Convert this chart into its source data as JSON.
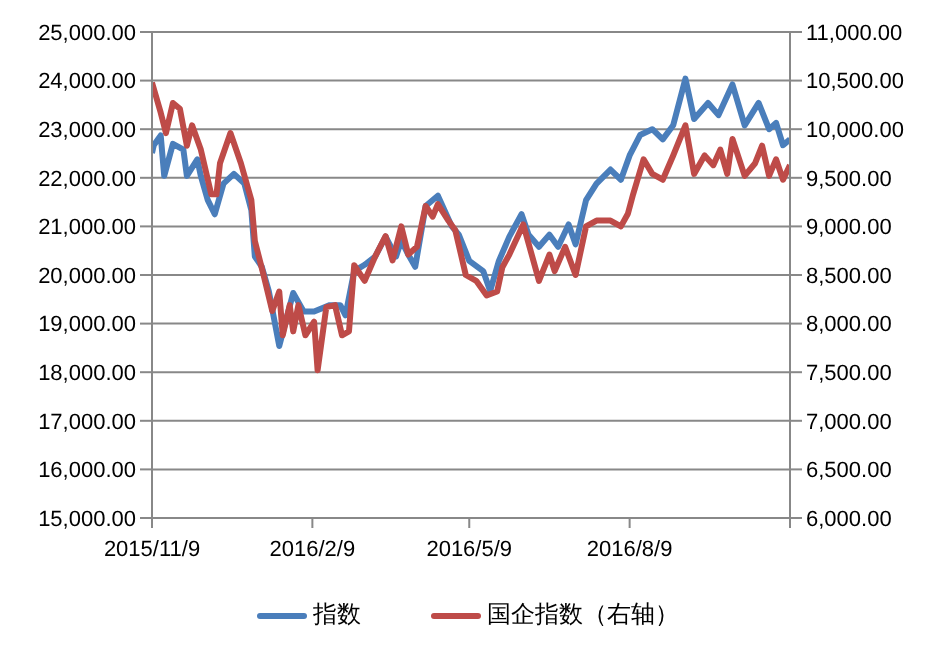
{
  "chart_data": {
    "type": "line",
    "grid": "y",
    "legend": "bottom",
    "marker": "none",
    "line_style": "solid",
    "xlim": [
      "2015-11-09",
      "2016-11-09"
    ],
    "xticks": [
      {
        "value": "2015-11-09",
        "label": "2015/11/9"
      },
      {
        "value": "2016-02-09",
        "label": "2016/2/9"
      },
      {
        "value": "2016-05-09",
        "label": "2016/5/9"
      },
      {
        "value": "2016-08-09",
        "label": "2016/8/9"
      },
      {
        "value": "2016-11-09",
        "label": null
      }
    ],
    "ylim": [
      15000,
      25000
    ],
    "yticks": [
      {
        "value": 15000,
        "label": "15,000.00"
      },
      {
        "value": 16000,
        "label": "16,000.00"
      },
      {
        "value": 17000,
        "label": "17,000.00"
      },
      {
        "value": 18000,
        "label": "18,000.00"
      },
      {
        "value": 19000,
        "label": "19,000.00"
      },
      {
        "value": 20000,
        "label": "20,000.00"
      },
      {
        "value": 21000,
        "label": "21,000.00"
      },
      {
        "value": 22000,
        "label": "22,000.00"
      },
      {
        "value": 23000,
        "label": "23,000.00"
      },
      {
        "value": 24000,
        "label": "24,000.00"
      },
      {
        "value": 25000,
        "label": "25,000.00"
      }
    ],
    "y2lim": [
      6000,
      11000
    ],
    "y2ticks": [
      {
        "value": 6000,
        "label": "6,000.00"
      },
      {
        "value": 6500,
        "label": "6,500.00"
      },
      {
        "value": 7000,
        "label": "7,000.00"
      },
      {
        "value": 7500,
        "label": "7,500.00"
      },
      {
        "value": 8000,
        "label": "8,000.00"
      },
      {
        "value": 8500,
        "label": "8,500.00"
      },
      {
        "value": 9000,
        "label": "9,000.00"
      },
      {
        "value": 9500,
        "label": "9,500.00"
      },
      {
        "value": 10000,
        "label": "10,000.00"
      },
      {
        "value": 10500,
        "label": "10,500.00"
      },
      {
        "value": 11000,
        "label": "11,000.00"
      }
    ],
    "series": [
      {
        "name": "指数",
        "color": "#4a7ebb",
        "x": [
          "2015-11-09",
          "2015-11-10",
          "2015-11-14",
          "2015-11-16",
          "2015-11-21",
          "2015-11-27",
          "2015-11-29",
          "2015-12-05",
          "2015-12-07",
          "2015-12-11",
          "2015-12-15",
          "2015-12-20",
          "2015-12-26",
          "2016-01-01",
          "2016-01-05",
          "2016-01-07",
          "2016-01-11",
          "2016-01-15",
          "2016-01-21",
          "2016-01-29",
          "2016-02-04",
          "2016-02-10",
          "2016-02-19",
          "2016-02-25",
          "2016-02-28",
          "2016-03-04",
          "2016-03-10",
          "2016-03-16",
          "2016-03-22",
          "2016-03-28",
          "2016-03-31",
          "2016-04-04",
          "2016-04-08",
          "2016-04-14",
          "2016-04-21",
          "2016-04-29",
          "2016-05-03",
          "2016-05-09",
          "2016-05-17",
          "2016-05-21",
          "2016-05-26",
          "2016-06-01",
          "2016-06-08",
          "2016-06-12",
          "2016-06-18",
          "2016-06-24",
          "2016-06-29",
          "2016-07-05",
          "2016-07-09",
          "2016-07-15",
          "2016-07-21",
          "2016-07-29",
          "2016-08-04",
          "2016-08-09",
          "2016-08-15",
          "2016-08-22",
          "2016-08-28",
          "2016-09-03",
          "2016-09-10",
          "2016-09-15",
          "2016-09-23",
          "2016-09-29",
          "2016-10-07",
          "2016-10-14",
          "2016-10-22",
          "2016-10-28",
          "2016-11-01",
          "2016-11-05",
          "2016-11-09"
        ],
        "values": [
          22510,
          22670,
          22870,
          22040,
          22700,
          22580,
          22040,
          22380,
          22040,
          21540,
          21250,
          21880,
          22080,
          21880,
          21330,
          20380,
          20170,
          19670,
          18540,
          19630,
          19250,
          19250,
          19380,
          19380,
          19170,
          20080,
          20210,
          20380,
          20790,
          20380,
          20710,
          20420,
          20170,
          21420,
          21630,
          21000,
          20830,
          20290,
          20080,
          19670,
          20290,
          20790,
          21250,
          20830,
          20580,
          20830,
          20580,
          21040,
          20630,
          21540,
          21880,
          22170,
          21960,
          22460,
          22880,
          23000,
          22790,
          23080,
          24040,
          23210,
          23540,
          23290,
          23920,
          23080,
          23540,
          23000,
          23130,
          22670,
          22790
        ]
      },
      {
        "name": "国企指数（右轴）",
        "color": "#be4b48",
        "axis": "y2",
        "x": [
          "2015-11-09",
          "2015-11-14",
          "2015-11-17",
          "2015-11-21",
          "2015-11-25",
          "2015-11-29",
          "2015-12-02",
          "2015-12-07",
          "2015-12-13",
          "2015-12-16",
          "2015-12-18",
          "2015-12-24",
          "2015-12-30",
          "2016-01-05",
          "2016-01-07",
          "2016-01-12",
          "2016-01-17",
          "2016-01-21",
          "2016-01-23",
          "2016-01-27",
          "2016-01-29",
          "2016-02-01",
          "2016-02-05",
          "2016-02-10",
          "2016-02-12",
          "2016-02-17",
          "2016-02-22",
          "2016-02-26",
          "2016-03-01",
          "2016-03-04",
          "2016-03-10",
          "2016-03-16",
          "2016-03-22",
          "2016-03-26",
          "2016-03-31",
          "2016-04-04",
          "2016-04-09",
          "2016-04-14",
          "2016-04-18",
          "2016-04-21",
          "2016-04-27",
          "2016-05-01",
          "2016-05-07",
          "2016-05-13",
          "2016-05-19",
          "2016-05-25",
          "2016-05-28",
          "2016-06-01",
          "2016-06-09",
          "2016-06-18",
          "2016-06-24",
          "2016-06-27",
          "2016-07-03",
          "2016-07-09",
          "2016-07-15",
          "2016-07-21",
          "2016-07-29",
          "2016-08-04",
          "2016-08-08",
          "2016-08-11",
          "2016-08-17",
          "2016-08-22",
          "2016-08-28",
          "2016-09-03",
          "2016-09-10",
          "2016-09-15",
          "2016-09-21",
          "2016-09-26",
          "2016-09-30",
          "2016-10-04",
          "2016-10-07",
          "2016-10-14",
          "2016-10-20",
          "2016-10-24",
          "2016-10-28",
          "2016-11-01",
          "2016-11-05",
          "2016-11-09"
        ],
        "values": [
          10480,
          10170,
          9960,
          10270,
          10210,
          9830,
          10040,
          9790,
          9330,
          9330,
          9650,
          9960,
          9650,
          9270,
          8850,
          8500,
          8130,
          8330,
          7880,
          8190,
          7920,
          8190,
          7880,
          8020,
          7520,
          8170,
          8190,
          7880,
          7920,
          8600,
          8440,
          8690,
          8900,
          8650,
          9000,
          8710,
          8790,
          9210,
          9100,
          9230,
          9060,
          8960,
          8500,
          8440,
          8290,
          8330,
          8580,
          8710,
          9020,
          8440,
          8710,
          8540,
          8790,
          8500,
          9000,
          9060,
          9060,
          9000,
          9130,
          9330,
          9690,
          9540,
          9480,
          9730,
          10040,
          9540,
          9730,
          9630,
          9790,
          9540,
          9900,
          9520,
          9650,
          9830,
          9520,
          9690,
          9480,
          9630
        ]
      }
    ]
  }
}
